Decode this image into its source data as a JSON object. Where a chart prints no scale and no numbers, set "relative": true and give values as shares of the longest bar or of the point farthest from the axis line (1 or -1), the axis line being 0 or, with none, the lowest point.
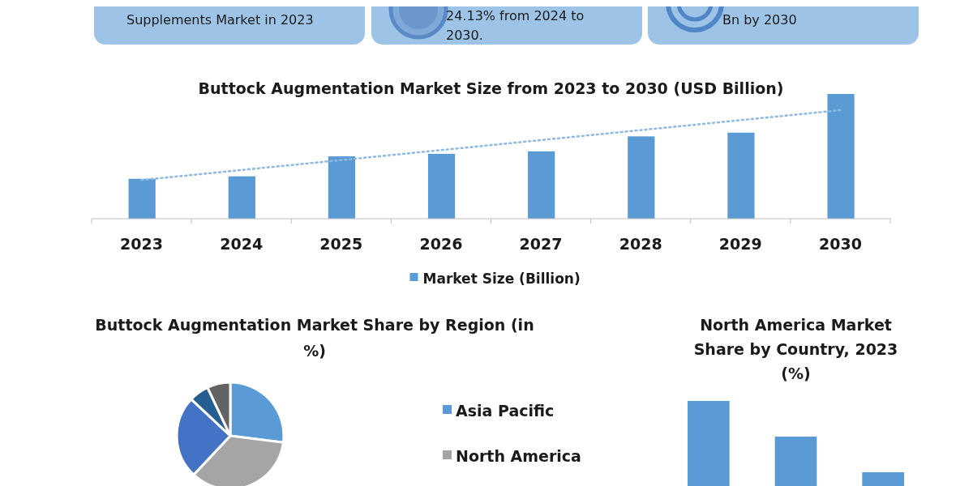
{
  "chart_data": [
    {
      "type": "other",
      "annotations": [
        "Supplements Market in 2023",
        "24.13% from 2024 to 2030.",
        "Bn by 2030"
      ]
    },
    {
      "type": "bar",
      "title": "Buttock Augmentation Market Size from 2023 to 2030 (USD Billion)",
      "relative": true,
      "categories": [
        "2023",
        "2024",
        "2025",
        "2026",
        "2027",
        "2028",
        "2029",
        "2030"
      ],
      "legend": "bottom",
      "series": [
        {
          "name": "Market Size (Billion)",
          "color": "#5b9bd5",
          "values": [
            0.32,
            0.34,
            0.5,
            0.52,
            0.54,
            0.66,
            0.69,
            1
          ]
        },
        {
          "type": "line",
          "color": "#8db9e2",
          "line_style": "dotted",
          "values": [
            0.31,
            0.39,
            0.47,
            0.55,
            0.63,
            0.71,
            0.79,
            0.87
          ]
        }
      ]
    },
    {
      "type": "pie",
      "title": "Buttock Augmentation Market Share by Region (in %)",
      "legend": "right",
      "categories": [
        "Asia Pacific",
        "North America",
        null,
        null,
        null
      ],
      "values": [
        27,
        35,
        25,
        6,
        7
      ],
      "colors": [
        "#5b9bd5",
        "#a5a5a5",
        "#4472c4",
        "#255e91",
        "#636363"
      ]
    },
    {
      "type": "bar",
      "title": "North America Market Share by Country, 2023 (%)",
      "relative": true,
      "categories": [
        null,
        null,
        null
      ],
      "values": [
        1,
        0.73,
        0.46
      ],
      "color": "#5b9bd5"
    }
  ]
}
